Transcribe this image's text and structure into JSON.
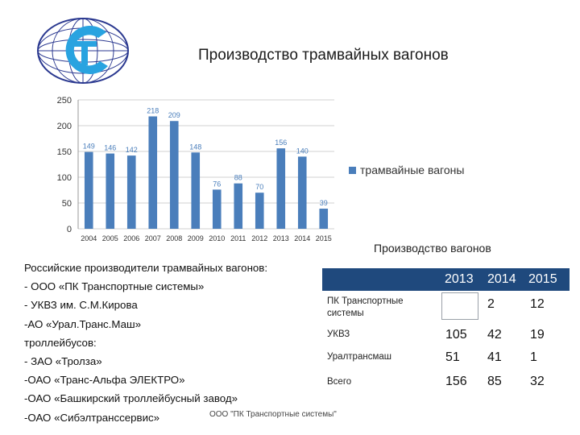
{
  "slide": {
    "title": "Производство трамвайных вагонов",
    "footer": "ООО \"ПК Транспортные системы\""
  },
  "chart_data": {
    "type": "bar",
    "categories": [
      "2004",
      "2005",
      "2006",
      "2007",
      "2008",
      "2009",
      "2010",
      "2011",
      "2012",
      "2013",
      "2014",
      "2015"
    ],
    "series": [
      {
        "name": "трамвайные вагоны",
        "values": [
          149,
          146,
          142,
          218,
          209,
          148,
          76,
          88,
          70,
          156,
          140,
          39
        ],
        "color": "#4a7ebb"
      }
    ],
    "ylim": [
      0,
      250
    ],
    "yticks": [
      0,
      50,
      100,
      150,
      200,
      250
    ],
    "grid": true,
    "legend": "right"
  },
  "left_text": {
    "lines": [
      "Российские производители трамвайных вагонов:",
      "- ООО «ПК Транспортные системы»",
      "- УКВЗ им. С.М.Кирова",
      "-АО «Урал.Транс.Маш»",
      "троллейбусов:",
      "- ЗАО «Тролза»",
      "-ОАО «Транс-Альфа ЭЛЕКТРО»",
      "-ОАО «Башкирский троллейбусный  завод»",
      "-ОАО «Сибэлтранссервис»"
    ]
  },
  "table": {
    "caption": "Производство  вагонов",
    "header_bg": "#1f497d",
    "years": [
      "2013",
      "2014",
      "2015"
    ],
    "rows": [
      {
        "name_lines": [
          "ПК Транспортные",
          "системы"
        ],
        "values": [
          "",
          "2",
          "12"
        ]
      },
      {
        "name_lines": [
          "УКВЗ"
        ],
        "values": [
          "105",
          "42",
          "19"
        ]
      },
      {
        "name_lines": [
          "Уралтрансмаш"
        ],
        "values": [
          "51",
          "41",
          "1"
        ]
      },
      {
        "name_lines": [
          "Всего"
        ],
        "values": [
          "156",
          "85",
          "32"
        ]
      }
    ]
  }
}
